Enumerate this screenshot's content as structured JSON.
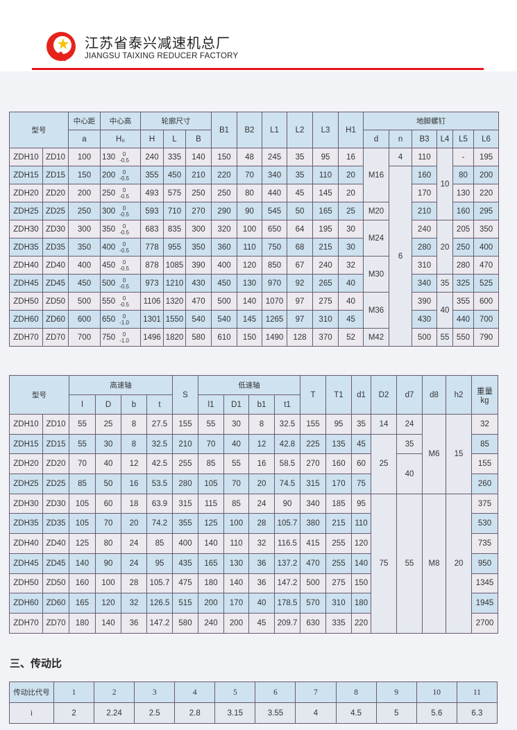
{
  "header": {
    "company_cn": "江苏省泰兴减速机总厂",
    "company_en": "JIANGSU TAIXING REDUCER FACTORY",
    "accent_color": "#e8141b"
  },
  "table1": {
    "headers": {
      "model": "型号",
      "center_distance": "中心距",
      "a": "a",
      "center_height": "中心高",
      "h0": "H₀",
      "outline": "轮廓尺寸",
      "H": "H",
      "L": "L",
      "B": "B",
      "B1": "B1",
      "B2": "B2",
      "L1": "L1",
      "L2": "L2",
      "L3": "L3",
      "H1": "H1",
      "anchor": "地脚螺钉",
      "d": "d",
      "n": "n",
      "B3": "B3",
      "L4": "L4",
      "L5": "L5",
      "L6": "L6"
    },
    "rows": [
      [
        "ZDH10",
        "ZD10",
        "100",
        "130",
        "0",
        "-0.5",
        "240",
        "335",
        "140",
        "150",
        "48",
        "245",
        "35",
        "95",
        "16",
        "110",
        "-",
        "195"
      ],
      [
        "ZDH15",
        "ZD15",
        "150",
        "200",
        "0",
        "-0.5",
        "355",
        "450",
        "210",
        "220",
        "70",
        "340",
        "35",
        "110",
        "20",
        "160",
        "80",
        "200"
      ],
      [
        "ZDH20",
        "ZD20",
        "200",
        "250",
        "0",
        "-0.5",
        "493",
        "575",
        "250",
        "250",
        "80",
        "440",
        "45",
        "145",
        "20",
        "170",
        "130",
        "220"
      ],
      [
        "ZDH25",
        "ZD25",
        "250",
        "300",
        "0",
        "-0.5",
        "593",
        "710",
        "270",
        "290",
        "90",
        "545",
        "50",
        "165",
        "25",
        "210",
        "160",
        "295"
      ],
      [
        "ZDH30",
        "ZD30",
        "300",
        "350",
        "0",
        "-0.5",
        "683",
        "835",
        "300",
        "320",
        "100",
        "650",
        "64",
        "195",
        "30",
        "240",
        "205",
        "350"
      ],
      [
        "ZDH35",
        "ZD35",
        "350",
        "400",
        "0",
        "-0.5",
        "778",
        "955",
        "350",
        "360",
        "110",
        "750",
        "68",
        "215",
        "30",
        "280",
        "250",
        "400"
      ],
      [
        "ZDH40",
        "ZD40",
        "400",
        "450",
        "0",
        "-0.5",
        "878",
        "1085",
        "390",
        "400",
        "120",
        "850",
        "67",
        "240",
        "32",
        "310",
        "280",
        "470"
      ],
      [
        "ZDH45",
        "ZD45",
        "450",
        "500",
        "0",
        "-0.5",
        "973",
        "1210",
        "430",
        "450",
        "130",
        "970",
        "92",
        "265",
        "40",
        "340",
        "325",
        "525"
      ],
      [
        "ZDH50",
        "ZD50",
        "500",
        "550",
        "0",
        "-0.5",
        "1106",
        "1320",
        "470",
        "500",
        "140",
        "1070",
        "97",
        "275",
        "40",
        "390",
        "355",
        "600"
      ],
      [
        "ZDH60",
        "ZD60",
        "600",
        "650",
        "0",
        "-1.0",
        "1301",
        "1550",
        "540",
        "540",
        "145",
        "1265",
        "97",
        "310",
        "45",
        "430",
        "440",
        "700"
      ],
      [
        "ZDH70",
        "ZD70",
        "700",
        "750",
        "0",
        "-1.0",
        "1496",
        "1820",
        "580",
        "610",
        "150",
        "1490",
        "128",
        "370",
        "52",
        "500",
        "550",
        "790"
      ]
    ],
    "merged": {
      "d": [
        [
          "M16",
          3
        ],
        [
          "M20",
          1
        ],
        [
          "M24",
          2
        ],
        [
          "M30",
          2
        ],
        [
          "M36",
          2
        ],
        [
          "M42",
          1
        ]
      ],
      "n": [
        [
          "4",
          1
        ],
        [
          "6",
          10
        ]
      ],
      "L4": [
        [
          "10",
          4
        ],
        [
          "20",
          3
        ],
        [
          "35",
          1
        ],
        [
          "40",
          2
        ],
        [
          "55",
          1
        ]
      ]
    }
  },
  "table2": {
    "headers": {
      "model": "型号",
      "high_speed_shaft": "高速轴",
      "l": "l",
      "D": "D",
      "b": "b",
      "t": "t",
      "S": "S",
      "low_speed_shaft": "低速轴",
      "l1": "l1",
      "D1": "D1",
      "b1": "b1",
      "t1": "t1",
      "T": "T",
      "T1": "T1",
      "d1": "d1",
      "D2": "D2",
      "d7": "d7",
      "d8": "d8",
      "h2": "h2",
      "weight": "重量",
      "weight_unit": "kg"
    },
    "rows": [
      [
        "ZDH10",
        "ZD10",
        "55",
        "25",
        "8",
        "27.5",
        "155",
        "55",
        "30",
        "8",
        "32.5",
        "155",
        "95",
        "35",
        "32"
      ],
      [
        "ZDH15",
        "ZD15",
        "55",
        "30",
        "8",
        "32.5",
        "210",
        "70",
        "40",
        "12",
        "42.8",
        "225",
        "135",
        "45",
        "85"
      ],
      [
        "ZDH20",
        "ZD20",
        "70",
        "40",
        "12",
        "42.5",
        "255",
        "85",
        "55",
        "16",
        "58.5",
        "270",
        "160",
        "60",
        "155"
      ],
      [
        "ZDH25",
        "ZD25",
        "85",
        "50",
        "16",
        "53.5",
        "280",
        "105",
        "70",
        "20",
        "74.5",
        "315",
        "170",
        "75",
        "260"
      ],
      [
        "ZDH30",
        "ZD30",
        "105",
        "60",
        "18",
        "63.9",
        "315",
        "115",
        "85",
        "24",
        "90",
        "340",
        "185",
        "95",
        "375"
      ],
      [
        "ZDH35",
        "ZD35",
        "105",
        "70",
        "20",
        "74.2",
        "355",
        "125",
        "100",
        "28",
        "105.7",
        "380",
        "215",
        "110",
        "530"
      ],
      [
        "ZDH40",
        "ZD40",
        "125",
        "80",
        "24",
        "85",
        "400",
        "140",
        "110",
        "32",
        "116.5",
        "415",
        "255",
        "120",
        "735"
      ],
      [
        "ZDH45",
        "ZD45",
        "140",
        "90",
        "24",
        "95",
        "435",
        "165",
        "130",
        "36",
        "137.2",
        "470",
        "255",
        "140",
        "950"
      ],
      [
        "ZDH50",
        "ZD50",
        "160",
        "100",
        "28",
        "105.7",
        "475",
        "180",
        "140",
        "36",
        "147.2",
        "500",
        "275",
        "150",
        "1345"
      ],
      [
        "ZDH60",
        "ZD60",
        "165",
        "120",
        "32",
        "126.5",
        "515",
        "200",
        "170",
        "40",
        "178.5",
        "570",
        "310",
        "180",
        "1945"
      ],
      [
        "ZDH70",
        "ZD70",
        "180",
        "140",
        "36",
        "147.2",
        "580",
        "240",
        "200",
        "45",
        "209.7",
        "630",
        "335",
        "220",
        "2700"
      ]
    ],
    "merged": {
      "D2": [
        [
          "14",
          1
        ],
        [
          "25",
          3
        ],
        [
          "75",
          7
        ]
      ],
      "d7": [
        [
          "24",
          1
        ],
        [
          "35",
          1
        ],
        [
          "40",
          2
        ],
        [
          "55",
          7
        ]
      ],
      "d8": [
        [
          "M6",
          4
        ],
        [
          "M8",
          7
        ]
      ],
      "h2": [
        [
          "15",
          4
        ],
        [
          "20",
          7
        ]
      ]
    }
  },
  "section3": {
    "title": "三、传动比",
    "code_label": "传动比代号",
    "ratio_label": "i",
    "codes": [
      "1",
      "2",
      "3",
      "4",
      "5",
      "6",
      "7",
      "8",
      "9",
      "10",
      "11"
    ],
    "ratios": [
      "2",
      "2.24",
      "2.5",
      "2.8",
      "3.15",
      "3.55",
      "4",
      "4.5",
      "5",
      "5.6",
      "6.3"
    ]
  }
}
